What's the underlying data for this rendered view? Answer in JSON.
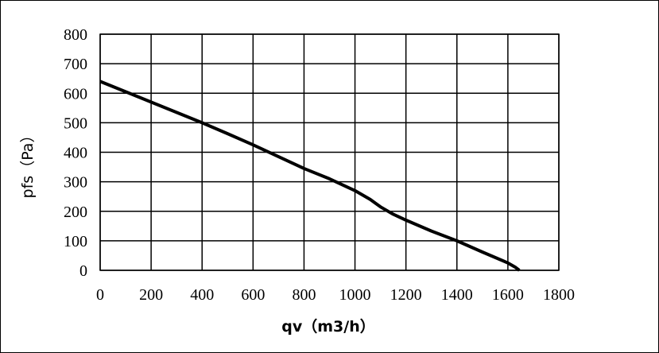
{
  "chart_data": {
    "type": "line",
    "xlabel": "qv（m3/h）",
    "ylabel": "pfs（Pa）",
    "xlim": [
      0,
      1800
    ],
    "ylim": [
      0,
      800
    ],
    "xticks": [
      0,
      200,
      400,
      600,
      800,
      1000,
      1200,
      1400,
      1600,
      1800
    ],
    "yticks": [
      0,
      100,
      200,
      300,
      400,
      500,
      600,
      700,
      800
    ],
    "x_tick_labels": [
      "0",
      "200",
      "400",
      "600",
      "800",
      "1000",
      "1200",
      "1400",
      "1600",
      "1800"
    ],
    "y_tick_labels": [
      "0",
      "100",
      "200",
      "300",
      "400",
      "500",
      "600",
      "700",
      "800"
    ],
    "grid": true,
    "series": [
      {
        "color": "#000000",
        "x": [
          0,
          100,
          200,
          300,
          400,
          500,
          600,
          700,
          800,
          900,
          1000,
          1060,
          1100,
          1150,
          1200,
          1300,
          1400,
          1500,
          1600,
          1630,
          1645
        ],
        "y": [
          640,
          605,
          570,
          535,
          500,
          463,
          425,
          385,
          345,
          310,
          270,
          240,
          215,
          190,
          170,
          133,
          100,
          62,
          25,
          10,
          0
        ]
      }
    ]
  }
}
